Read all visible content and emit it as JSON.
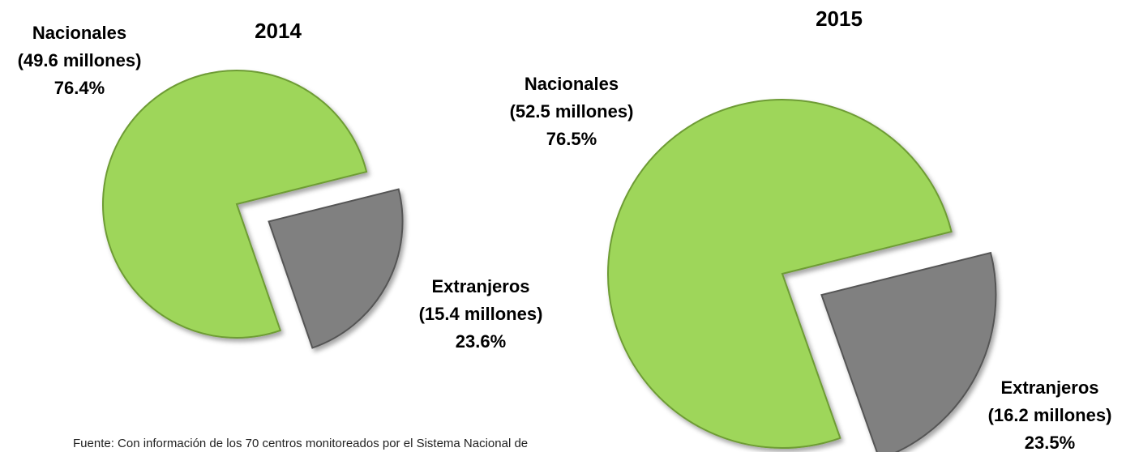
{
  "chart_data": [
    {
      "type": "pie",
      "title": "2014",
      "categories": [
        "Nacionales",
        "Extranjeros"
      ],
      "values": [
        76.4,
        23.6
      ],
      "value_labels": [
        "76.4%",
        "23.6%"
      ],
      "amounts": [
        49.6,
        15.4
      ],
      "amount_labels": [
        "(49.6 millones)",
        "(15.4 millones)"
      ],
      "colors": [
        "#9ed65a",
        "#808080"
      ]
    },
    {
      "type": "pie",
      "title": "2015",
      "categories": [
        "Nacionales",
        "Extranjeros"
      ],
      "values": [
        76.5,
        23.5
      ],
      "value_labels": [
        "76.5%",
        "23.5%"
      ],
      "amounts": [
        52.5,
        16.2
      ],
      "amount_labels": [
        "(52.5 millones)",
        "(16.2 millones)"
      ],
      "colors": [
        "#9ed65a",
        "#808080"
      ]
    }
  ],
  "source": "Fuente: Con información de los 70 centros monitoreados por el Sistema Nacional de"
}
